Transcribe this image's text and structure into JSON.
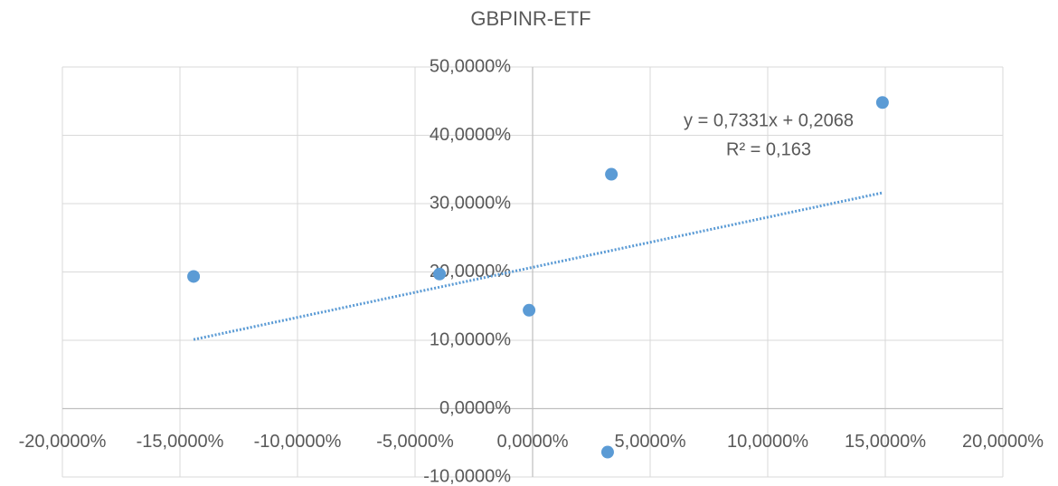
{
  "chart_data": {
    "type": "scatter",
    "title": "GBPINR-ETF",
    "series": [
      {
        "name": "GBPINR-ETF",
        "color": "#5b9bd5",
        "x": [
          -14.42,
          -3.96,
          -0.15,
          3.35,
          3.19,
          14.88
        ],
        "values": [
          19.34,
          19.7,
          14.4,
          34.3,
          -6.36,
          44.8
        ]
      }
    ],
    "trendline": {
      "label": "y = 0,7331x + 0,2068",
      "r2_label": "R² = 0,163",
      "slope": 0.7331,
      "intercept": 20.68,
      "style": "dotted"
    },
    "xlim": [
      -20,
      20
    ],
    "xticks": [
      {
        "value": -20,
        "label": "-20,0000%"
      },
      {
        "value": -15,
        "label": "-15,0000%"
      },
      {
        "value": -10,
        "label": "-10,0000%"
      },
      {
        "value": -5,
        "label": "-5,0000%"
      },
      {
        "value": 0,
        "label": "0,0000%"
      },
      {
        "value": 5,
        "label": "5,0000%"
      },
      {
        "value": 10,
        "label": "10,0000%"
      },
      {
        "value": 15,
        "label": "15,0000%"
      },
      {
        "value": 20,
        "label": "20,0000%"
      }
    ],
    "ylim": [
      -10,
      50
    ],
    "yticks": [
      {
        "value": -10,
        "label": "-10,0000%"
      },
      {
        "value": 0,
        "label": "0,0000%"
      },
      {
        "value": 10,
        "label": "10,0000%"
      },
      {
        "value": 20,
        "label": "20,0000%"
      },
      {
        "value": 30,
        "label": "30,0000%"
      },
      {
        "value": 40,
        "label": "40,0000%"
      },
      {
        "value": 50,
        "label": "50,0000%"
      }
    ],
    "grid": true
  }
}
